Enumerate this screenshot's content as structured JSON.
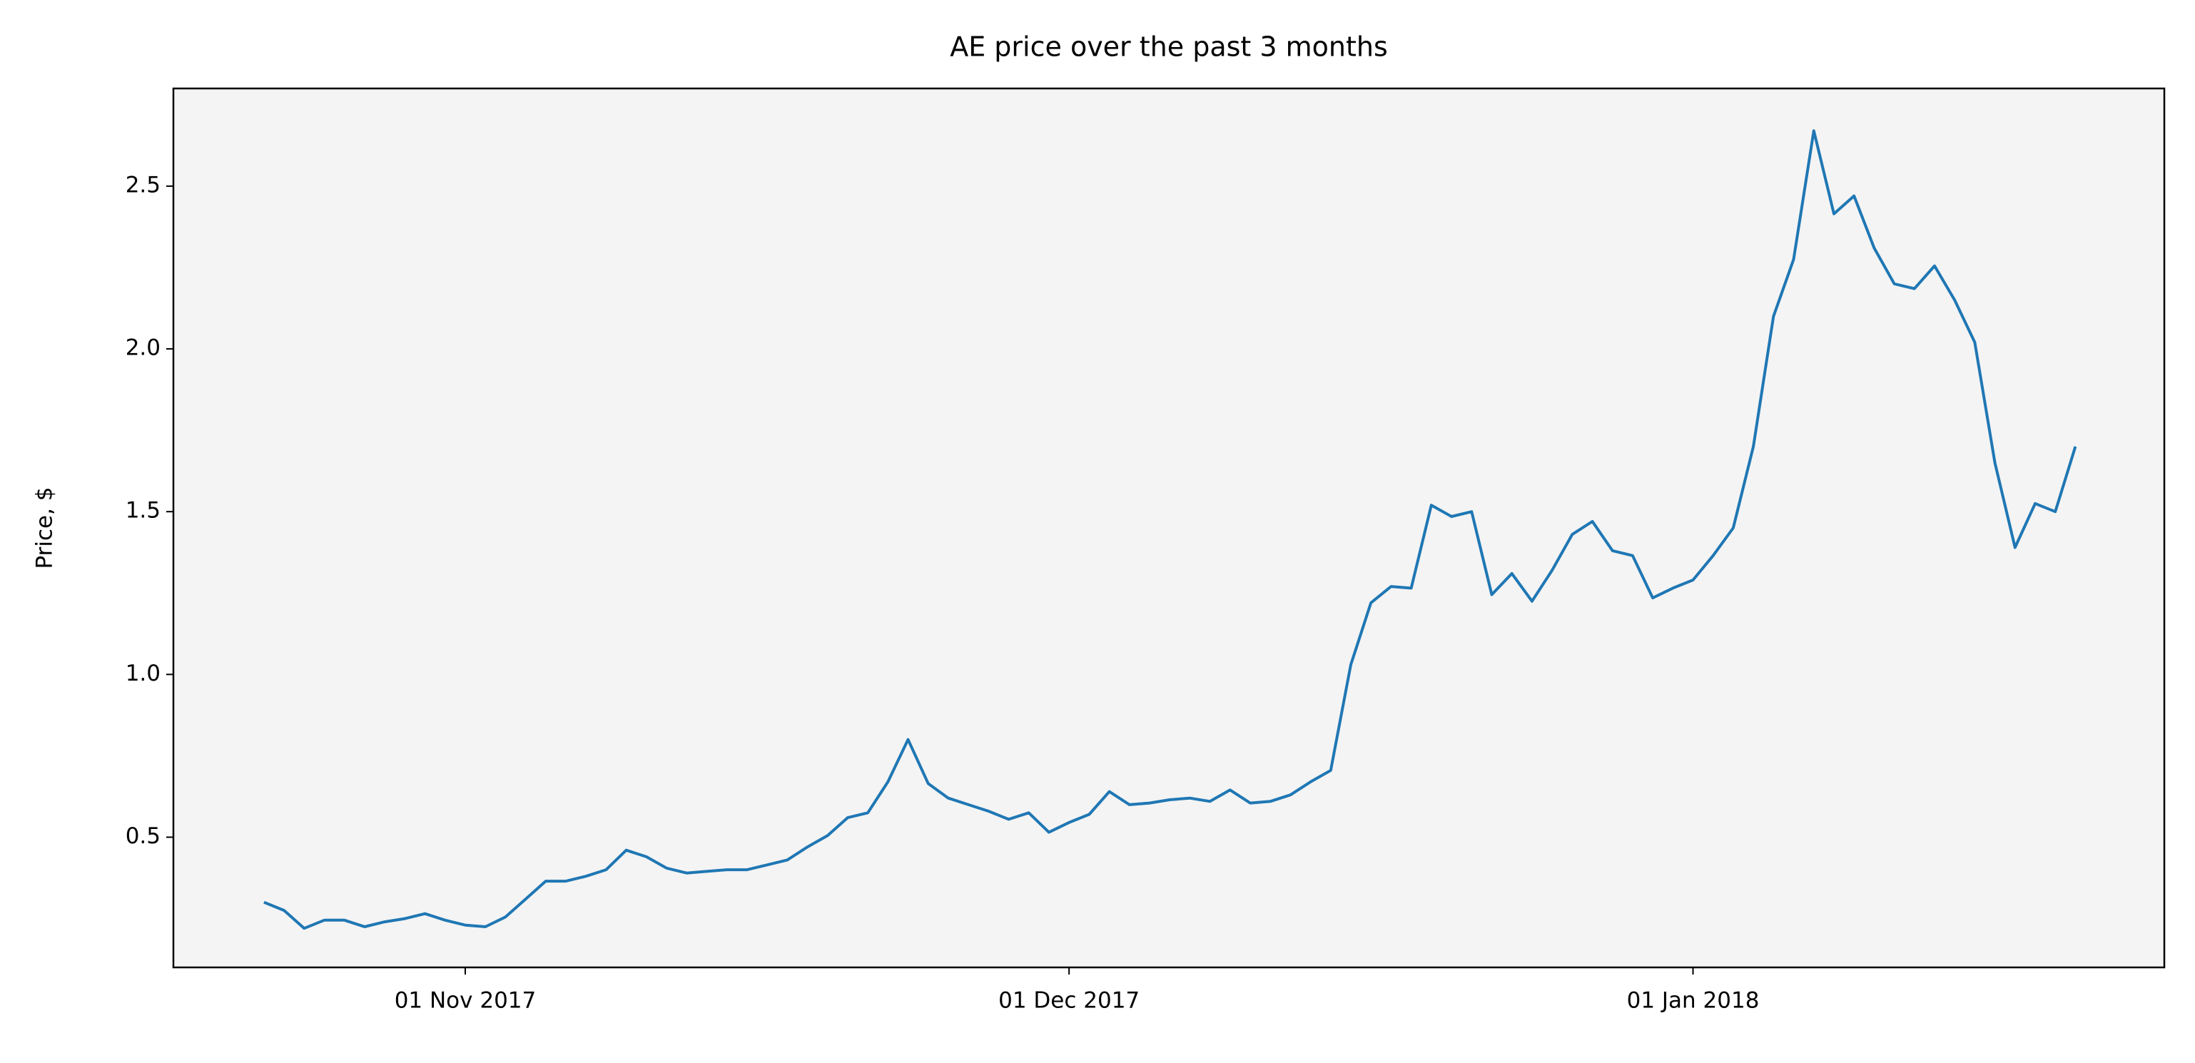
{
  "chart_data": {
    "type": "line",
    "title": "AE price over the past 3 months",
    "y_label": "Price, $",
    "x": [
      "2017-10-22",
      "2017-10-23",
      "2017-10-24",
      "2017-10-25",
      "2017-10-26",
      "2017-10-27",
      "2017-10-28",
      "2017-10-29",
      "2017-10-30",
      "2017-10-31",
      "2017-11-01",
      "2017-11-02",
      "2017-11-03",
      "2017-11-04",
      "2017-11-05",
      "2017-11-06",
      "2017-11-07",
      "2017-11-08",
      "2017-11-09",
      "2017-11-10",
      "2017-11-11",
      "2017-11-12",
      "2017-11-13",
      "2017-11-14",
      "2017-11-15",
      "2017-11-16",
      "2017-11-17",
      "2017-11-18",
      "2017-11-19",
      "2017-11-20",
      "2017-11-21",
      "2017-11-22",
      "2017-11-23",
      "2017-11-24",
      "2017-11-25",
      "2017-11-26",
      "2017-11-27",
      "2017-11-28",
      "2017-11-29",
      "2017-11-30",
      "2017-12-01",
      "2017-12-02",
      "2017-12-03",
      "2017-12-04",
      "2017-12-05",
      "2017-12-06",
      "2017-12-07",
      "2017-12-08",
      "2017-12-09",
      "2017-12-10",
      "2017-12-11",
      "2017-12-12",
      "2017-12-13",
      "2017-12-14",
      "2017-12-15",
      "2017-12-16",
      "2017-12-17",
      "2017-12-18",
      "2017-12-19",
      "2017-12-20",
      "2017-12-21",
      "2017-12-22",
      "2017-12-23",
      "2017-12-24",
      "2017-12-25",
      "2017-12-26",
      "2017-12-27",
      "2017-12-28",
      "2017-12-29",
      "2017-12-30",
      "2017-12-31",
      "2018-01-01",
      "2018-01-02",
      "2018-01-03",
      "2018-01-04",
      "2018-01-05",
      "2018-01-06",
      "2018-01-07",
      "2018-01-08",
      "2018-01-09",
      "2018-01-10",
      "2018-01-11",
      "2018-01-12",
      "2018-01-13",
      "2018-01-14",
      "2018-01-15",
      "2018-01-16",
      "2018-01-17",
      "2018-01-18",
      "2018-01-19",
      "2018-01-20"
    ],
    "series": [
      {
        "color": "#1f77b4",
        "values": [
          0.3,
          0.275,
          0.22,
          0.245,
          0.245,
          0.225,
          0.24,
          0.25,
          0.265,
          0.245,
          0.23,
          0.225,
          0.255,
          0.31,
          0.365,
          0.365,
          0.38,
          0.4,
          0.46,
          0.44,
          0.405,
          0.39,
          0.395,
          0.4,
          0.4,
          0.415,
          0.43,
          0.47,
          0.505,
          0.56,
          0.575,
          0.67,
          0.8,
          0.665,
          0.62,
          0.6,
          0.58,
          0.555,
          0.575,
          0.515,
          0.545,
          0.57,
          0.64,
          0.6,
          0.605,
          0.615,
          0.62,
          0.61,
          0.645,
          0.605,
          0.61,
          0.63,
          0.67,
          0.705,
          1.03,
          1.22,
          1.27,
          1.265,
          1.52,
          1.485,
          1.5,
          1.245,
          1.31,
          1.225,
          1.32,
          1.43,
          1.47,
          1.38,
          1.365,
          1.235,
          1.265,
          1.29,
          1.365,
          1.45,
          1.7,
          2.1,
          2.275,
          2.67,
          2.415,
          2.47,
          2.31,
          2.2,
          2.185,
          2.255,
          2.15,
          2.02,
          1.65,
          1.39,
          1.525,
          1.5,
          1.7
        ]
      }
    ],
    "xlim": [
      "2017-10-17T12:00",
      "2018-01-24T10:00"
    ],
    "xticks": [
      {
        "value": "2017-11-01",
        "label": "01 Nov 2017"
      },
      {
        "value": "2017-12-01",
        "label": "01 Dec 2017"
      },
      {
        "value": "2018-01-01",
        "label": "01 Jan 2018"
      }
    ],
    "ylim": [
      0.1,
      2.8
    ],
    "yticks": [
      0.5,
      {
        "value": 1.0,
        "label": "1.0"
      },
      1.5,
      {
        "value": 2.0,
        "label": "2.0"
      },
      2.5
    ],
    "background": "#f4f4f4"
  }
}
